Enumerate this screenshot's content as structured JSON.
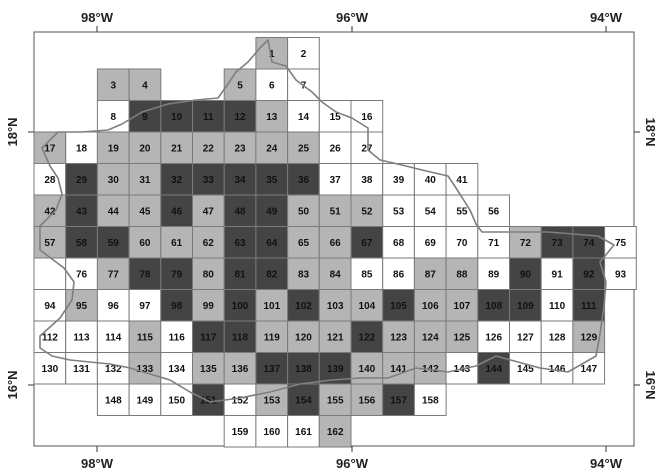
{
  "map": {
    "lon_labels": [
      "98°W",
      "96°W",
      "94°W"
    ],
    "lat_labels": [
      "18°N",
      "16°N"
    ],
    "shade_colors": {
      "white": "#ffffff",
      "light": "#b5b5b5",
      "dark": "#444444"
    },
    "cells": [
      {
        "id": "1",
        "row": 0,
        "col": 7,
        "shade": "light"
      },
      {
        "id": "2",
        "row": 0,
        "col": 8,
        "shade": "white"
      },
      {
        "id": "3",
        "row": 1,
        "col": 2,
        "shade": "light"
      },
      {
        "id": "4",
        "row": 1,
        "col": 3,
        "shade": "light"
      },
      {
        "id": "5",
        "row": 1,
        "col": 6,
        "shade": "light"
      },
      {
        "id": "6",
        "row": 1,
        "col": 7,
        "shade": "white"
      },
      {
        "id": "7",
        "row": 1,
        "col": 8,
        "shade": "white"
      },
      {
        "id": "8",
        "row": 2,
        "col": 2,
        "shade": "white"
      },
      {
        "id": "9",
        "row": 2,
        "col": 3,
        "shade": "dark"
      },
      {
        "id": "10",
        "row": 2,
        "col": 4,
        "shade": "dark"
      },
      {
        "id": "11",
        "row": 2,
        "col": 5,
        "shade": "dark"
      },
      {
        "id": "12",
        "row": 2,
        "col": 6,
        "shade": "dark"
      },
      {
        "id": "13",
        "row": 2,
        "col": 7,
        "shade": "light"
      },
      {
        "id": "14",
        "row": 2,
        "col": 8,
        "shade": "white"
      },
      {
        "id": "15",
        "row": 2,
        "col": 9,
        "shade": "white"
      },
      {
        "id": "16",
        "row": 2,
        "col": 10,
        "shade": "white"
      },
      {
        "id": "17",
        "row": 3,
        "col": 0,
        "shade": "light"
      },
      {
        "id": "18",
        "row": 3,
        "col": 1,
        "shade": "white"
      },
      {
        "id": "19",
        "row": 3,
        "col": 2,
        "shade": "light"
      },
      {
        "id": "20",
        "row": 3,
        "col": 3,
        "shade": "light"
      },
      {
        "id": "21",
        "row": 3,
        "col": 4,
        "shade": "light"
      },
      {
        "id": "22",
        "row": 3,
        "col": 5,
        "shade": "light"
      },
      {
        "id": "23",
        "row": 3,
        "col": 6,
        "shade": "light"
      },
      {
        "id": "24",
        "row": 3,
        "col": 7,
        "shade": "light"
      },
      {
        "id": "25",
        "row": 3,
        "col": 8,
        "shade": "light"
      },
      {
        "id": "26",
        "row": 3,
        "col": 9,
        "shade": "white"
      },
      {
        "id": "27",
        "row": 3,
        "col": 10,
        "shade": "white"
      },
      {
        "id": "28",
        "row": 4,
        "col": 0,
        "shade": "white"
      },
      {
        "id": "29",
        "row": 4,
        "col": 1,
        "shade": "dark"
      },
      {
        "id": "30",
        "row": 4,
        "col": 2,
        "shade": "light"
      },
      {
        "id": "31",
        "row": 4,
        "col": 3,
        "shade": "light"
      },
      {
        "id": "32",
        "row": 4,
        "col": 4,
        "shade": "dark"
      },
      {
        "id": "33",
        "row": 4,
        "col": 5,
        "shade": "dark"
      },
      {
        "id": "34",
        "row": 4,
        "col": 6,
        "shade": "dark"
      },
      {
        "id": "35",
        "row": 4,
        "col": 7,
        "shade": "dark"
      },
      {
        "id": "36",
        "row": 4,
        "col": 8,
        "shade": "dark"
      },
      {
        "id": "37",
        "row": 4,
        "col": 9,
        "shade": "white"
      },
      {
        "id": "38",
        "row": 4,
        "col": 10,
        "shade": "white"
      },
      {
        "id": "39",
        "row": 4,
        "col": 11,
        "shade": "white"
      },
      {
        "id": "40",
        "row": 4,
        "col": 12,
        "shade": "white"
      },
      {
        "id": "41",
        "row": 4,
        "col": 13,
        "shade": "white"
      },
      {
        "id": "42",
        "row": 5,
        "col": 0,
        "shade": "light"
      },
      {
        "id": "43",
        "row": 5,
        "col": 1,
        "shade": "dark"
      },
      {
        "id": "44",
        "row": 5,
        "col": 2,
        "shade": "light"
      },
      {
        "id": "45",
        "row": 5,
        "col": 3,
        "shade": "light"
      },
      {
        "id": "46",
        "row": 5,
        "col": 4,
        "shade": "dark"
      },
      {
        "id": "47",
        "row": 5,
        "col": 5,
        "shade": "light"
      },
      {
        "id": "48",
        "row": 5,
        "col": 6,
        "shade": "dark"
      },
      {
        "id": "49",
        "row": 5,
        "col": 7,
        "shade": "dark"
      },
      {
        "id": "50",
        "row": 5,
        "col": 8,
        "shade": "light"
      },
      {
        "id": "51",
        "row": 5,
        "col": 9,
        "shade": "light"
      },
      {
        "id": "52",
        "row": 5,
        "col": 10,
        "shade": "light"
      },
      {
        "id": "53",
        "row": 5,
        "col": 11,
        "shade": "white"
      },
      {
        "id": "54",
        "row": 5,
        "col": 12,
        "shade": "white"
      },
      {
        "id": "55",
        "row": 5,
        "col": 13,
        "shade": "white"
      },
      {
        "id": "56",
        "row": 5,
        "col": 14,
        "shade": "white"
      },
      {
        "id": "57",
        "row": 6,
        "col": 0,
        "shade": "light"
      },
      {
        "id": "58",
        "row": 6,
        "col": 1,
        "shade": "dark"
      },
      {
        "id": "59",
        "row": 6,
        "col": 2,
        "shade": "dark"
      },
      {
        "id": "60",
        "row": 6,
        "col": 3,
        "shade": "light"
      },
      {
        "id": "61",
        "row": 6,
        "col": 4,
        "shade": "light"
      },
      {
        "id": "62",
        "row": 6,
        "col": 5,
        "shade": "light"
      },
      {
        "id": "63",
        "row": 6,
        "col": 6,
        "shade": "dark"
      },
      {
        "id": "64",
        "row": 6,
        "col": 7,
        "shade": "dark"
      },
      {
        "id": "65",
        "row": 6,
        "col": 8,
        "shade": "light"
      },
      {
        "id": "66",
        "row": 6,
        "col": 9,
        "shade": "light"
      },
      {
        "id": "67",
        "row": 6,
        "col": 10,
        "shade": "dark"
      },
      {
        "id": "68",
        "row": 6,
        "col": 11,
        "shade": "white"
      },
      {
        "id": "69",
        "row": 6,
        "col": 12,
        "shade": "white"
      },
      {
        "id": "70",
        "row": 6,
        "col": 13,
        "shade": "white"
      },
      {
        "id": "71",
        "row": 6,
        "col": 14,
        "shade": "white"
      },
      {
        "id": "72",
        "row": 6,
        "col": 15,
        "shade": "light"
      },
      {
        "id": "73",
        "row": 6,
        "col": 16,
        "shade": "dark"
      },
      {
        "id": "74",
        "row": 6,
        "col": 17,
        "shade": "dark"
      },
      {
        "id": "75",
        "row": 6,
        "col": 18,
        "shade": "white"
      },
      {
        "id": "",
        "row": 7,
        "col": 0,
        "shade": "white"
      },
      {
        "id": "76",
        "row": 7,
        "col": 1,
        "shade": "white"
      },
      {
        "id": "77",
        "row": 7,
        "col": 2,
        "shade": "light"
      },
      {
        "id": "78",
        "row": 7,
        "col": 3,
        "shade": "dark"
      },
      {
        "id": "79",
        "row": 7,
        "col": 4,
        "shade": "dark"
      },
      {
        "id": "80",
        "row": 7,
        "col": 5,
        "shade": "light"
      },
      {
        "id": "81",
        "row": 7,
        "col": 6,
        "shade": "dark"
      },
      {
        "id": "82",
        "row": 7,
        "col": 7,
        "shade": "dark"
      },
      {
        "id": "83",
        "row": 7,
        "col": 8,
        "shade": "light"
      },
      {
        "id": "84",
        "row": 7,
        "col": 9,
        "shade": "light"
      },
      {
        "id": "85",
        "row": 7,
        "col": 10,
        "shade": "white"
      },
      {
        "id": "86",
        "row": 7,
        "col": 11,
        "shade": "white"
      },
      {
        "id": "87",
        "row": 7,
        "col": 12,
        "shade": "light"
      },
      {
        "id": "88",
        "row": 7,
        "col": 13,
        "shade": "light"
      },
      {
        "id": "89",
        "row": 7,
        "col": 14,
        "shade": "white"
      },
      {
        "id": "90",
        "row": 7,
        "col": 15,
        "shade": "dark"
      },
      {
        "id": "91",
        "row": 7,
        "col": 16,
        "shade": "white"
      },
      {
        "id": "92",
        "row": 7,
        "col": 17,
        "shade": "dark"
      },
      {
        "id": "93",
        "row": 7,
        "col": 18,
        "shade": "white"
      },
      {
        "id": "94",
        "row": 8,
        "col": 0,
        "shade": "white"
      },
      {
        "id": "95",
        "row": 8,
        "col": 1,
        "shade": "light"
      },
      {
        "id": "96",
        "row": 8,
        "col": 2,
        "shade": "white"
      },
      {
        "id": "97",
        "row": 8,
        "col": 3,
        "shade": "white"
      },
      {
        "id": "98",
        "row": 8,
        "col": 4,
        "shade": "dark"
      },
      {
        "id": "99",
        "row": 8,
        "col": 5,
        "shade": "light"
      },
      {
        "id": "100",
        "row": 8,
        "col": 6,
        "shade": "dark"
      },
      {
        "id": "101",
        "row": 8,
        "col": 7,
        "shade": "light"
      },
      {
        "id": "102",
        "row": 8,
        "col": 8,
        "shade": "dark"
      },
      {
        "id": "103",
        "row": 8,
        "col": 9,
        "shade": "light"
      },
      {
        "id": "104",
        "row": 8,
        "col": 10,
        "shade": "light"
      },
      {
        "id": "105",
        "row": 8,
        "col": 11,
        "shade": "dark"
      },
      {
        "id": "106",
        "row": 8,
        "col": 12,
        "shade": "light"
      },
      {
        "id": "107",
        "row": 8,
        "col": 13,
        "shade": "light"
      },
      {
        "id": "108",
        "row": 8,
        "col": 14,
        "shade": "dark"
      },
      {
        "id": "109",
        "row": 8,
        "col": 15,
        "shade": "dark"
      },
      {
        "id": "110",
        "row": 8,
        "col": 16,
        "shade": "white"
      },
      {
        "id": "111",
        "row": 8,
        "col": 17,
        "shade": "dark"
      },
      {
        "id": "112",
        "row": 9,
        "col": 0,
        "shade": "white"
      },
      {
        "id": "113",
        "row": 9,
        "col": 1,
        "shade": "white"
      },
      {
        "id": "114",
        "row": 9,
        "col": 2,
        "shade": "white"
      },
      {
        "id": "115",
        "row": 9,
        "col": 3,
        "shade": "light"
      },
      {
        "id": "116",
        "row": 9,
        "col": 4,
        "shade": "white"
      },
      {
        "id": "117",
        "row": 9,
        "col": 5,
        "shade": "dark"
      },
      {
        "id": "118",
        "row": 9,
        "col": 6,
        "shade": "dark"
      },
      {
        "id": "119",
        "row": 9,
        "col": 7,
        "shade": "light"
      },
      {
        "id": "120",
        "row": 9,
        "col": 8,
        "shade": "light"
      },
      {
        "id": "121",
        "row": 9,
        "col": 9,
        "shade": "light"
      },
      {
        "id": "122",
        "row": 9,
        "col": 10,
        "shade": "dark"
      },
      {
        "id": "123",
        "row": 9,
        "col": 11,
        "shade": "light"
      },
      {
        "id": "124",
        "row": 9,
        "col": 12,
        "shade": "light"
      },
      {
        "id": "125",
        "row": 9,
        "col": 13,
        "shade": "light"
      },
      {
        "id": "126",
        "row": 9,
        "col": 14,
        "shade": "white"
      },
      {
        "id": "127",
        "row": 9,
        "col": 15,
        "shade": "white"
      },
      {
        "id": "128",
        "row": 9,
        "col": 16,
        "shade": "white"
      },
      {
        "id": "129",
        "row": 9,
        "col": 17,
        "shade": "light"
      },
      {
        "id": "130",
        "row": 10,
        "col": 0,
        "shade": "white"
      },
      {
        "id": "131",
        "row": 10,
        "col": 1,
        "shade": "white"
      },
      {
        "id": "132",
        "row": 10,
        "col": 2,
        "shade": "white"
      },
      {
        "id": "133",
        "row": 10,
        "col": 3,
        "shade": "light"
      },
      {
        "id": "134",
        "row": 10,
        "col": 4,
        "shade": "white"
      },
      {
        "id": "135",
        "row": 10,
        "col": 5,
        "shade": "light"
      },
      {
        "id": "136",
        "row": 10,
        "col": 6,
        "shade": "light"
      },
      {
        "id": "137",
        "row": 10,
        "col": 7,
        "shade": "dark"
      },
      {
        "id": "138",
        "row": 10,
        "col": 8,
        "shade": "dark"
      },
      {
        "id": "139",
        "row": 10,
        "col": 9,
        "shade": "dark"
      },
      {
        "id": "140",
        "row": 10,
        "col": 10,
        "shade": "light"
      },
      {
        "id": "141",
        "row": 10,
        "col": 11,
        "shade": "light"
      },
      {
        "id": "142",
        "row": 10,
        "col": 12,
        "shade": "light"
      },
      {
        "id": "143",
        "row": 10,
        "col": 13,
        "shade": "white"
      },
      {
        "id": "144",
        "row": 10,
        "col": 14,
        "shade": "dark"
      },
      {
        "id": "145",
        "row": 10,
        "col": 15,
        "shade": "white"
      },
      {
        "id": "146",
        "row": 10,
        "col": 16,
        "shade": "white"
      },
      {
        "id": "147",
        "row": 10,
        "col": 17,
        "shade": "white"
      },
      {
        "id": "148",
        "row": 11,
        "col": 2,
        "shade": "white"
      },
      {
        "id": "149",
        "row": 11,
        "col": 3,
        "shade": "white"
      },
      {
        "id": "150",
        "row": 11,
        "col": 4,
        "shade": "white"
      },
      {
        "id": "151",
        "row": 11,
        "col": 5,
        "shade": "dark"
      },
      {
        "id": "152",
        "row": 11,
        "col": 6,
        "shade": "white"
      },
      {
        "id": "153",
        "row": 11,
        "col": 7,
        "shade": "light"
      },
      {
        "id": "154",
        "row": 11,
        "col": 8,
        "shade": "dark"
      },
      {
        "id": "155",
        "row": 11,
        "col": 9,
        "shade": "light"
      },
      {
        "id": "156",
        "row": 11,
        "col": 10,
        "shade": "light"
      },
      {
        "id": "157",
        "row": 11,
        "col": 11,
        "shade": "dark"
      },
      {
        "id": "158",
        "row": 11,
        "col": 12,
        "shade": "white"
      },
      {
        "id": "159",
        "row": 12,
        "col": 6,
        "shade": "white"
      },
      {
        "id": "160",
        "row": 12,
        "col": 7,
        "shade": "white"
      },
      {
        "id": "161",
        "row": 12,
        "col": 8,
        "shade": "white"
      },
      {
        "id": "162",
        "row": 12,
        "col": 9,
        "shade": "light"
      }
    ]
  }
}
